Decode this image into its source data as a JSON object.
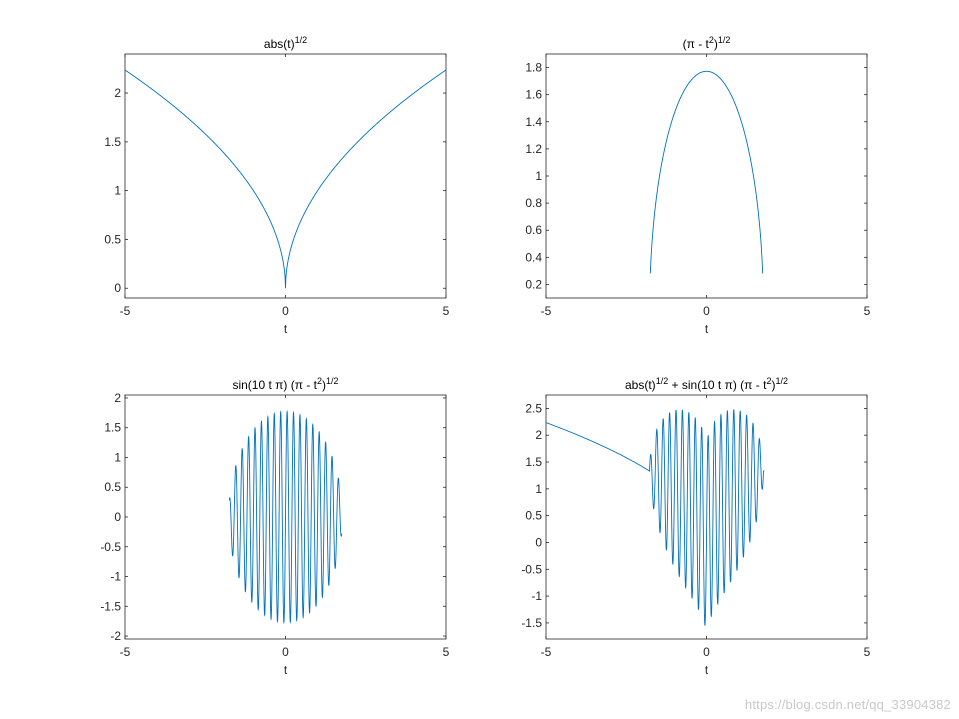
{
  "watermark": "https://blog.csdn.net/qq_33904382",
  "chart_data": [
    {
      "type": "line",
      "title": "abs(t)",
      "title_sup": "1/2",
      "title_rest": "",
      "title_sup2": "",
      "xlabel": "t",
      "ylabel": "",
      "xlim": [
        -5,
        5
      ],
      "ylim": [
        -0.1,
        2.4
      ],
      "xticks": [
        -5,
        0,
        5
      ],
      "yticks": [
        0,
        0.5,
        1,
        1.5,
        2
      ],
      "ytick_labels": [
        "0",
        "0.5",
        "1",
        "1.5",
        "2"
      ],
      "grid": false,
      "series": [
        {
          "color": "#0072bd",
          "formula": "sqrt(abs(t))",
          "t_range": [
            -5,
            5
          ],
          "samples": 801
        }
      ]
    },
    {
      "type": "line",
      "title": "(π - t",
      "title_sup": "2",
      "title_rest": ")",
      "title_sup2": "1/2",
      "xlabel": "t",
      "ylabel": "",
      "xlim": [
        -5,
        5
      ],
      "ylim": [
        0.1,
        1.9
      ],
      "xticks": [
        -5,
        0,
        5
      ],
      "yticks": [
        0.2,
        0.4,
        0.6,
        0.8,
        1,
        1.2,
        1.4,
        1.6,
        1.8
      ],
      "ytick_labels": [
        "0.2",
        "0.4",
        "0.6",
        "0.8",
        "1",
        "1.2",
        "1.4",
        "1.6",
        "1.8"
      ],
      "grid": false,
      "series": [
        {
          "color": "#0072bd",
          "formula": "sqrt(pi - t^2)",
          "t_range": [
            -1.75,
            1.75
          ],
          "samples": 401
        }
      ]
    },
    {
      "type": "line",
      "title": "sin(10 t π) (π - t",
      "title_sup": "2",
      "title_rest": ")",
      "title_sup2": "1/2",
      "xlabel": "t",
      "ylabel": "",
      "xlim": [
        -5,
        5
      ],
      "ylim": [
        -2.05,
        2.05
      ],
      "xticks": [
        -5,
        0,
        5
      ],
      "yticks": [
        -2,
        -1.5,
        -1,
        -0.5,
        0,
        0.5,
        1,
        1.5,
        2
      ],
      "ytick_labels": [
        "-2",
        "-1.5",
        "-1",
        "-0.5",
        "0",
        "0.5",
        "1",
        "1.5",
        "2"
      ],
      "grid": false,
      "series": [
        {
          "color": "#0072bd",
          "formula": "sin(10*pi*t)*sqrt(pi - t^2)",
          "t_range": [
            -1.75,
            1.75
          ],
          "samples": 1401
        }
      ]
    },
    {
      "type": "line",
      "title": "abs(t)",
      "title_sup": "1/2",
      "title_rest": " + sin(10 t π) (π - t",
      "title_sup2": "2",
      "title_rest2": ")",
      "title_sup3": "1/2",
      "xlabel": "t",
      "ylabel": "",
      "xlim": [
        -5,
        5
      ],
      "ylim": [
        -1.8,
        2.75
      ],
      "xticks": [
        -5,
        0,
        5
      ],
      "yticks": [
        -1.5,
        -1,
        -0.5,
        0,
        0.5,
        1,
        1.5,
        2,
        2.5
      ],
      "ytick_labels": [
        "-1.5",
        "-1",
        "-0.5",
        "0",
        "0.5",
        "1",
        "1.5",
        "2",
        "2.5"
      ],
      "grid": false,
      "series": [
        {
          "color": "#0072bd",
          "formula": "sqrt(abs(t)) + sin(10*pi*t)*sqrt(pi - t^2)",
          "t_range": [
            -5,
            1.8
          ],
          "samples": 1601
        }
      ]
    }
  ]
}
